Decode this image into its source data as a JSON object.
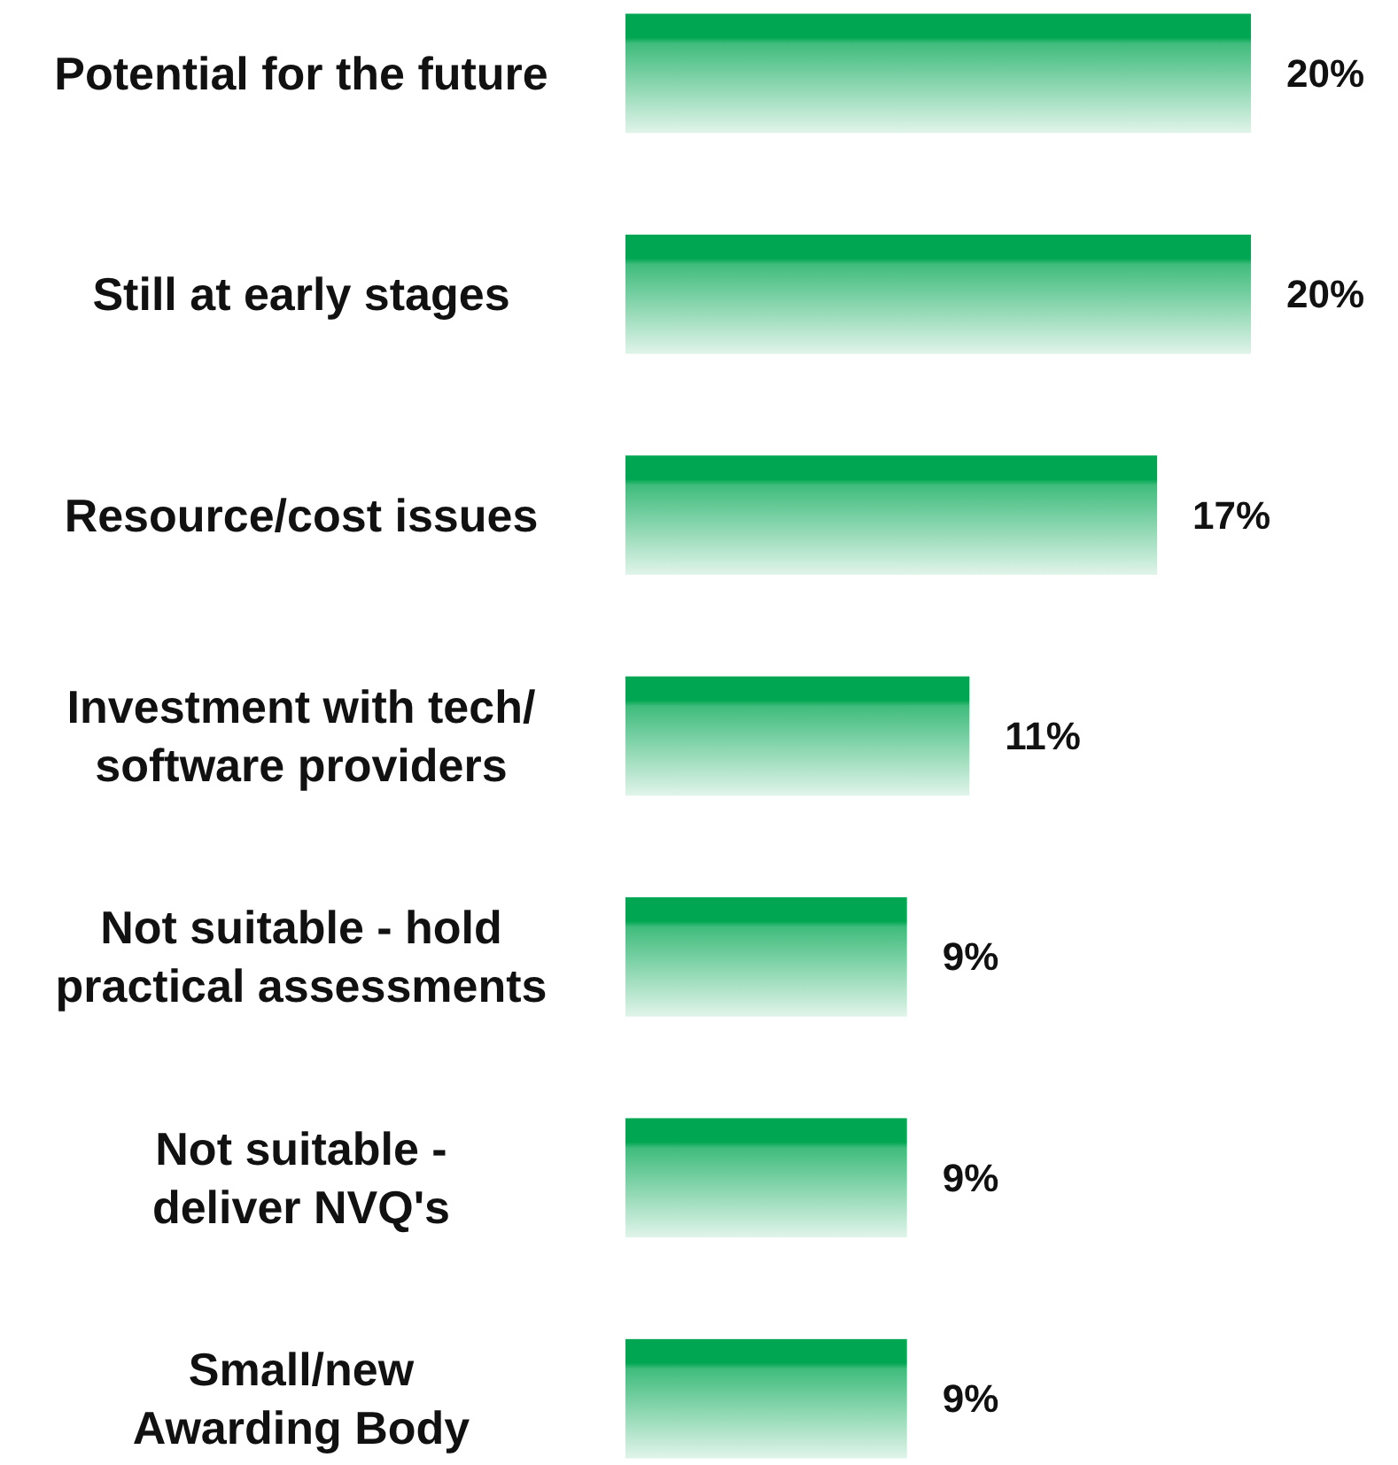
{
  "chart_data": {
    "type": "bar",
    "orientation": "horizontal",
    "categories": [
      "Potential for the future",
      "Still at early stages",
      "Resource/cost issues",
      "Investment with tech/\nsoftware providers",
      "Not suitable - hold\npractical assessments",
      "Not suitable -\ndeliver NVQ's",
      "Small/new\nAwarding Body"
    ],
    "values": [
      20,
      20,
      17,
      11,
      9,
      9,
      9
    ],
    "value_labels": [
      "20%",
      "20%",
      "17%",
      "11%",
      "9%",
      "9%",
      "9%"
    ],
    "color": "#00a651"
  }
}
